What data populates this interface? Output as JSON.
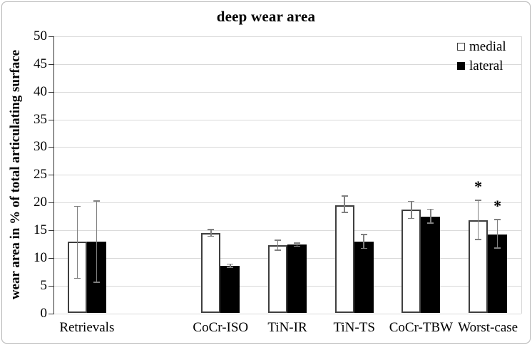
{
  "figure_title": "deep wear area",
  "chart_data": {
    "type": "bar",
    "title": "deep wear area",
    "xlabel": "",
    "ylabel": "wear area in % of total articulating surface",
    "ylim": [
      0,
      50
    ],
    "ytick_step": 5,
    "grid": true,
    "legend_position": "top-right",
    "categories": [
      "Retrievals",
      "",
      "CoCr-ISO",
      "TiN-IR",
      "TiN-TS",
      "CoCr-TBW",
      "Worst-case"
    ],
    "series": [
      {
        "name": "medial",
        "fill": "#ffffff",
        "values": [
          12.9,
          null,
          14.5,
          12.3,
          19.5,
          18.7,
          16.8
        ],
        "error_plus": [
          6.4,
          null,
          0.6,
          0.9,
          1.7,
          1.5,
          3.6
        ],
        "error_minus": [
          6.6,
          null,
          0.6,
          0.9,
          1.3,
          1.6,
          3.5
        ],
        "annotations": [
          "",
          "",
          "",
          "",
          "",
          "",
          "*"
        ]
      },
      {
        "name": "lateral",
        "fill": "#000000",
        "values": [
          12.9,
          null,
          8.6,
          12.4,
          12.9,
          17.4,
          14.2
        ],
        "error_plus": [
          7.4,
          null,
          0.3,
          0.3,
          1.3,
          1.4,
          2.7
        ],
        "error_minus": [
          7.3,
          null,
          0.3,
          0.3,
          1.2,
          1.1,
          2.4
        ],
        "annotations": [
          "",
          "",
          "",
          "",
          "",
          "",
          "*"
        ]
      }
    ],
    "colors": {
      "bar_border": "#3f3f3f",
      "lateral_fill": "#000000",
      "medial_fill": "#ffffff",
      "gridline": "#d9d9d9",
      "axis_line": "#333333",
      "error_bar": "#808080",
      "text": "#000000",
      "figure_border": "#b3b3b3"
    }
  }
}
